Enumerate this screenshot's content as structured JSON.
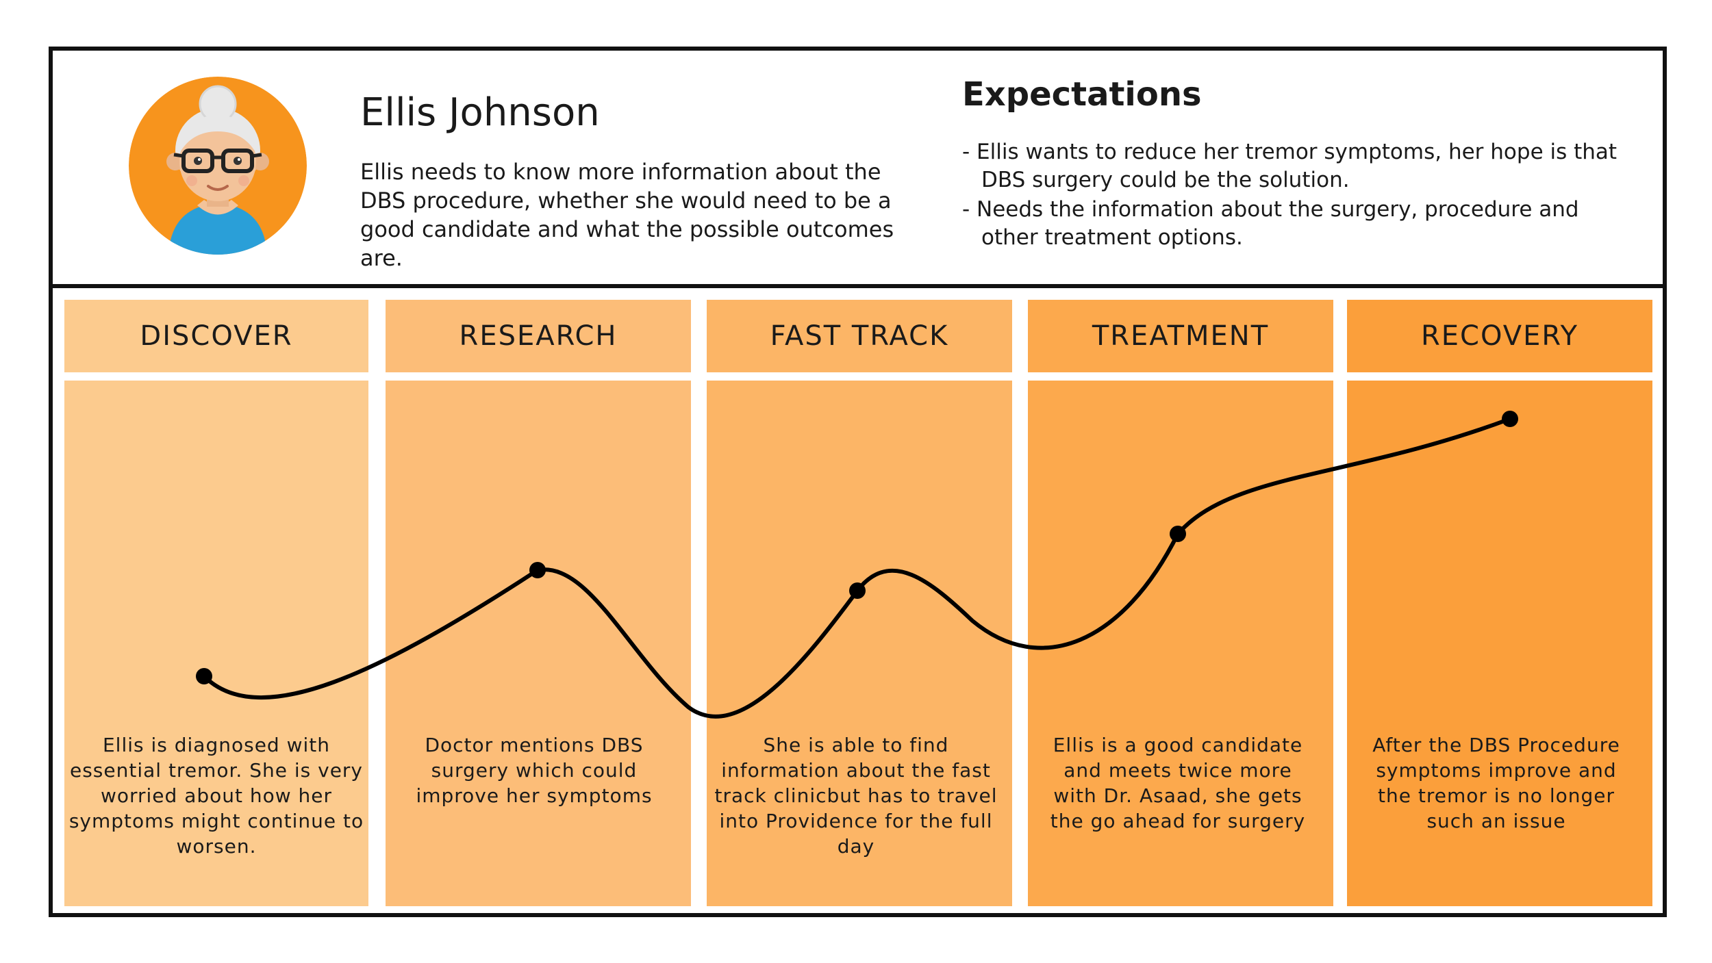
{
  "persona": {
    "name": "Ellis Johnson",
    "description": "Ellis needs to know more information about the DBS procedure, whether she would need to be a good candidate and what the possible outcomes are."
  },
  "expectations": {
    "title": "Expectations",
    "items": [
      "- Ellis wants to reduce her tremor symptoms, her hope is that DBS surgery could be the solution.",
      "- Needs the information about the surgery, procedure and other treatment options."
    ]
  },
  "stages": [
    {
      "title": "DISCOVER",
      "text": "Ellis is diagnosed with essential tremor. She is very worried about how her symptoms might continue to worsen.",
      "header_color": "#fccb8e",
      "body_color": "#fccb8e"
    },
    {
      "title": "RESEARCH",
      "text": "Doctor mentions DBS surgery which could improve her symptoms",
      "header_color": "#fcbd78",
      "body_color": "#fcbd78"
    },
    {
      "title": "FAST TRACK",
      "text": "She is able to find information about the fast track clinicbut has to travel into Providence for the full day",
      "header_color": "#fcb566",
      "body_color": "#fcb566"
    },
    {
      "title": "TREATMENT",
      "text": "Ellis is a good candidate and meets twice more with Dr. Asaad, she gets the go ahead for surgery",
      "header_color": "#fca94d",
      "body_color": "#fca94d"
    },
    {
      "title": "RECOVERY",
      "text": "After the DBS Procedure symptoms improve and the tremor is no longer such an issue",
      "header_color": "#fb9f3b",
      "body_color": "#fb9f3b"
    }
  ],
  "colors": {
    "frame": "#111111",
    "avatar_bg": "#f7941d",
    "curve": "#000000"
  }
}
